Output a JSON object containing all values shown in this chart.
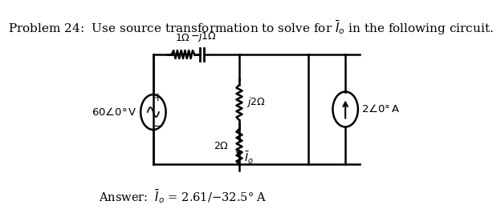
{
  "title": "Problem 24:  Use source transformation to solve for $\\bar{I}_o$ in the following circuit.",
  "answer": "Answer:  $\\bar{I}_o$ = 2.61/−32.5° A",
  "bg_color": "#ffffff",
  "title_fontsize": 11,
  "answer_fontsize": 10.5
}
